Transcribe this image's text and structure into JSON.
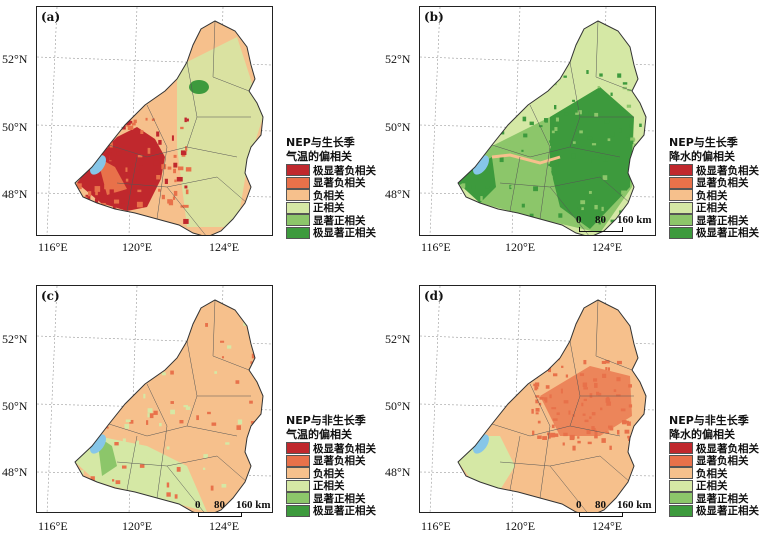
{
  "panels": [
    {
      "label": "(a)",
      "legend_title": [
        "NEP与生长季",
        "气温的偏相关"
      ],
      "dominant": "mixed-negative",
      "scalebar": null
    },
    {
      "label": "(b)",
      "legend_title": [
        "NEP与生长季",
        "降水的偏相关"
      ],
      "dominant": "positive",
      "scalebar": {
        "labels": [
          "0",
          "80",
          "160 km"
        ]
      }
    },
    {
      "label": "(c)",
      "legend_title": [
        "NEP与非生长季",
        "气温的偏相关"
      ],
      "dominant": "negative-light",
      "scalebar": {
        "labels": [
          "0",
          "80",
          "160 km"
        ]
      }
    },
    {
      "label": "(d)",
      "legend_title": [
        "NEP与非生长季",
        "降水的偏相关"
      ],
      "dominant": "negative",
      "scalebar": {
        "labels": [
          "0",
          "80",
          "160 km"
        ]
      }
    }
  ],
  "legend_items": [
    {
      "label": "极显著负相关",
      "color": "#c0282d"
    },
    {
      "label": "显著负相关",
      "color": "#e8714a"
    },
    {
      "label": "负相关",
      "color": "#f6c08c"
    },
    {
      "label": "正相关",
      "color": "#d5e8a5"
    },
    {
      "label": "显著正相关",
      "color": "#8cc66a"
    },
    {
      "label": "极显著正相关",
      "color": "#3d9a3d"
    }
  ],
  "lat_labels": [
    "52°N",
    "50°N",
    "48°N"
  ],
  "lon_labels": [
    "116°E",
    "120°E",
    "124°E"
  ],
  "colors": {
    "lake": "#86c6e8",
    "border": "#555555"
  }
}
